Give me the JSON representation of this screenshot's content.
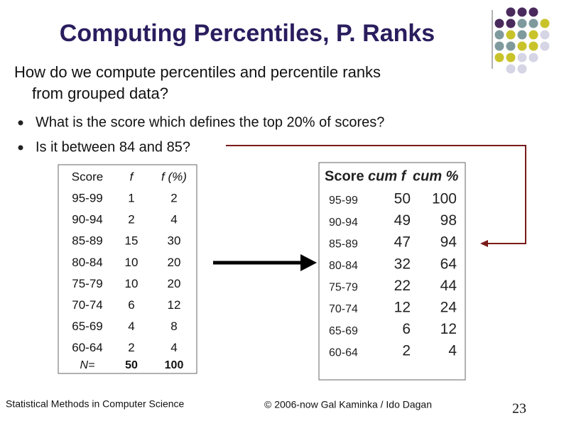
{
  "header": {
    "title": "Computing Percentiles, P. Ranks"
  },
  "intro": [
    "How do we compute percentiles and percentile ranks",
    "from grouped data?"
  ],
  "bullets": [
    "What is the score which defines the top 20% of scores?",
    "Is it between 84 and 85?"
  ],
  "left_table": {
    "headers": [
      "Score",
      "f",
      "f (%)"
    ],
    "rows": [
      [
        "95-99",
        "1",
        "2"
      ],
      [
        "90-94",
        "2",
        "4"
      ],
      [
        "85-89",
        "15",
        "30"
      ],
      [
        "80-84",
        "10",
        "20"
      ],
      [
        "75-79",
        "10",
        "20"
      ],
      [
        "70-74",
        "6",
        "12"
      ],
      [
        "65-69",
        "4",
        "8"
      ],
      [
        "60-64",
        "2",
        "4"
      ]
    ],
    "total": [
      "N=",
      "50",
      "100"
    ]
  },
  "right_table": {
    "headers": [
      "Score",
      "cum f",
      "cum %"
    ],
    "rows": [
      [
        "95-99",
        "50",
        "100"
      ],
      [
        "90-94",
        "49",
        "98"
      ],
      [
        "85-89",
        "47",
        "94"
      ],
      [
        "80-84",
        "32",
        "64"
      ],
      [
        "75-79",
        "22",
        "44"
      ],
      [
        "70-74",
        "12",
        "24"
      ],
      [
        "65-69",
        "6",
        "12"
      ],
      [
        "60-64",
        "2",
        "4"
      ]
    ]
  },
  "footer": {
    "left": "Statistical Methods in Computer Science",
    "right": "© 2006-now Gal Kaminka / Ido Dagan",
    "page": "23"
  }
}
